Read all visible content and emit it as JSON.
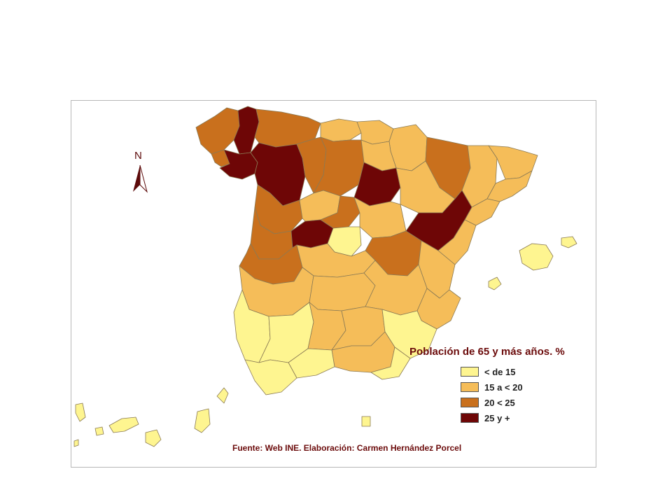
{
  "map": {
    "north_label": "N",
    "legend": {
      "title": "Población de 65 y más años. %",
      "items": [
        {
          "label": "< de 15",
          "color": "#fef590"
        },
        {
          "label": "15 a < 20",
          "color": "#f5bd59"
        },
        {
          "label": "20 < 25",
          "color": "#c9701d"
        },
        {
          "label": "25 y +",
          "color": "#6e0606"
        }
      ]
    },
    "source": "Fuente: Web INE. Elaboración: Carmen Hernández Porcel",
    "colors": {
      "low": "#fef590",
      "mid": "#f5bd59",
      "high": "#c9701d",
      "top": "#6e0606",
      "border": "#8a7a55",
      "frame": "#b7b7b7"
    }
  }
}
